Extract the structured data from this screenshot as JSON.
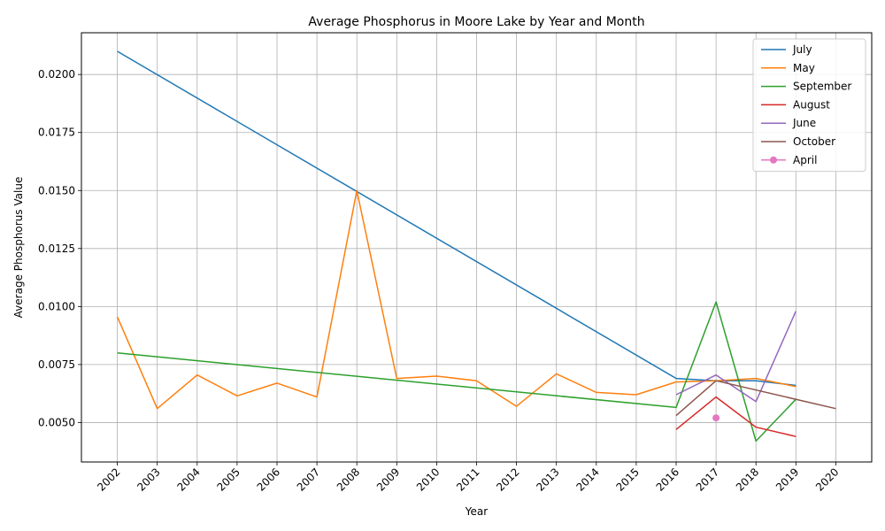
{
  "chart_data": {
    "type": "line",
    "title": "Average Phosphorus in Moore Lake by Year and Month",
    "xlabel": "Year",
    "ylabel": "Average Phosphorus Value",
    "xlim": [
      2001.1,
      2020.9
    ],
    "ylim": [
      0.0033,
      0.0218
    ],
    "x_ticks": [
      2002,
      2003,
      2004,
      2005,
      2006,
      2007,
      2008,
      2009,
      2010,
      2011,
      2012,
      2013,
      2014,
      2015,
      2016,
      2017,
      2018,
      2019,
      2020
    ],
    "y_ticks": [
      0.005,
      0.0075,
      0.01,
      0.0125,
      0.015,
      0.0175,
      0.02
    ],
    "y_tick_labels": [
      "0.0050",
      "0.0075",
      "0.0100",
      "0.0125",
      "0.0150",
      "0.0175",
      "0.0200"
    ],
    "grid": true,
    "legend_position": "top-right",
    "series": [
      {
        "name": "July",
        "color": "#1f77b4",
        "marker": false,
        "x": [
          2002,
          2016,
          2017,
          2018,
          2019
        ],
        "y": [
          0.021,
          0.0069,
          0.0068,
          0.0068,
          0.0066
        ]
      },
      {
        "name": "May",
        "color": "#ff7f0e",
        "marker": false,
        "x": [
          2002,
          2003,
          2004,
          2005,
          2006,
          2007,
          2008,
          2009,
          2010,
          2011,
          2012,
          2013,
          2014,
          2015,
          2016,
          2017,
          2018,
          2019
        ],
        "y": [
          0.00955,
          0.0056,
          0.00705,
          0.00615,
          0.0067,
          0.0061,
          0.015,
          0.0069,
          0.007,
          0.0068,
          0.0057,
          0.0071,
          0.0063,
          0.0062,
          0.00675,
          0.0068,
          0.0069,
          0.00655
        ]
      },
      {
        "name": "September",
        "color": "#2ca02c",
        "marker": false,
        "x": [
          2002,
          2016,
          2017,
          2018,
          2019
        ],
        "y": [
          0.008,
          0.00565,
          0.0102,
          0.0042,
          0.006
        ]
      },
      {
        "name": "August",
        "color": "#d62728",
        "marker": false,
        "x": [
          2016,
          2017,
          2018,
          2019
        ],
        "y": [
          0.0047,
          0.0061,
          0.0048,
          0.0044
        ]
      },
      {
        "name": "June",
        "color": "#9467bd",
        "marker": false,
        "x": [
          2016,
          2017,
          2018,
          2019
        ],
        "y": [
          0.0062,
          0.00705,
          0.0059,
          0.0098
        ]
      },
      {
        "name": "October",
        "color": "#8c564b",
        "marker": false,
        "x": [
          2016,
          2017,
          2020
        ],
        "y": [
          0.0053,
          0.0068,
          0.0056
        ]
      },
      {
        "name": "April",
        "color": "#e377c2",
        "marker": true,
        "x": [
          2017
        ],
        "y": [
          0.0052
        ]
      }
    ]
  }
}
